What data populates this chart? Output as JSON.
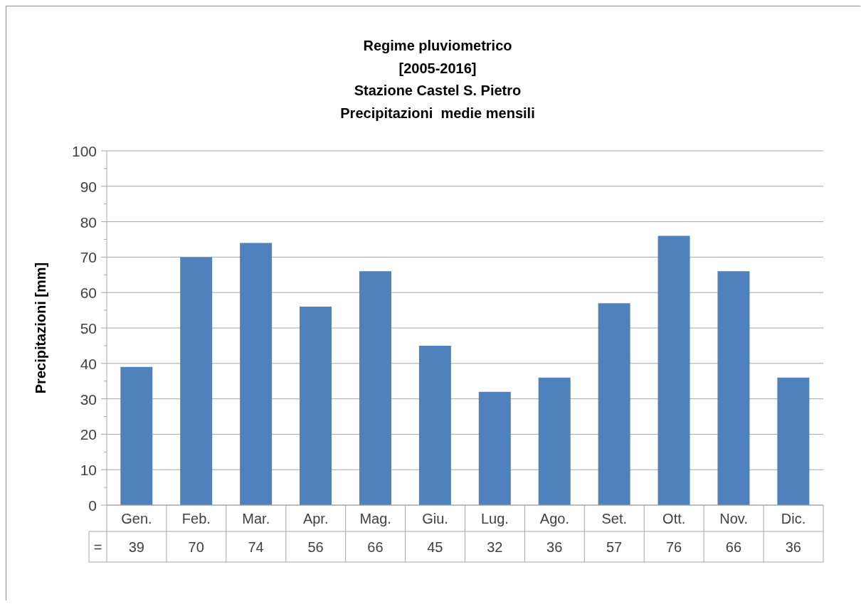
{
  "chart_data": {
    "type": "bar",
    "title": "Regime pluviometrico\n[2005-2016]\nStazione Castel S. Pietro\nPrecipitazioni  medie mensili",
    "ylabel": "Precipitazioni [mm]",
    "categories": [
      "Gen.",
      "Feb.",
      "Mar.",
      "Apr.",
      "Mag.",
      "Giu.",
      "Lug.",
      "Ago.",
      "Set.",
      "Ott.",
      "Nov.",
      "Dic."
    ],
    "series": [
      {
        "name": "=",
        "color": "#4f81bd",
        "values": [
          39,
          70,
          74,
          56,
          66,
          45,
          32,
          36,
          57,
          76,
          66,
          36
        ]
      }
    ],
    "ylim": [
      0,
      100
    ],
    "yticks": [
      0,
      {
        "value": 5,
        "label": null
      },
      10,
      {
        "value": 15,
        "label": null
      },
      20,
      {
        "value": 25,
        "label": null
      },
      30,
      {
        "value": 35,
        "label": null
      },
      40,
      {
        "value": 45,
        "label": null
      },
      50,
      {
        "value": 55,
        "label": null
      },
      60,
      {
        "value": 65,
        "label": null
      },
      70,
      {
        "value": 75,
        "label": null
      },
      80,
      {
        "value": 85,
        "label": null
      },
      90,
      {
        "value": 95,
        "label": null
      },
      100
    ],
    "grid": "y",
    "data_labels": true
  }
}
